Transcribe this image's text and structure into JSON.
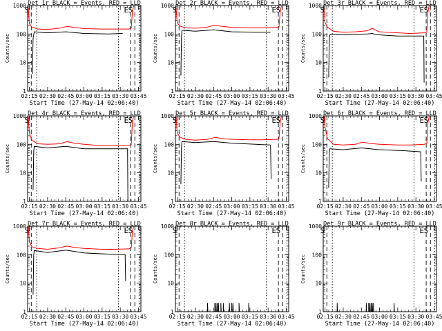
{
  "chart_data": {
    "type": "line",
    "yscale": "log",
    "ylim": [
      1,
      1000
    ],
    "yticks": [
      1,
      10,
      100,
      1000
    ],
    "ytick_labels": [
      "1",
      "10",
      "100",
      "1000"
    ],
    "ylabel": "Counts/sec",
    "xlim_min": [
      133.5,
      227
    ],
    "xticks_min": [
      135,
      150,
      165,
      180,
      195,
      210,
      225
    ],
    "xtick_labels": [
      "02:15",
      "02:30",
      "02:45",
      "03:00",
      "03:15",
      "03:30",
      "03:45"
    ],
    "xlabel": "Start Time (27-May-14 02:06:40)",
    "markers": {
      "S": {
        "label": "S",
        "style": "dashed",
        "min": 136.5
      },
      "S_dot": {
        "style": "dotted",
        "min": 141
      },
      "E_dot": {
        "style": "dotted",
        "min": 208.5
      },
      "E": {
        "label": "E",
        "style": "dashed",
        "min": 218.5
      },
      "S2": {
        "label": "S",
        "style": "dashed",
        "min": 222
      },
      "S2_dot": {
        "style": "dotted",
        "min": 225.5
      }
    },
    "series_names": [
      "Events (black)",
      "LLD (red)"
    ],
    "colors": {
      "events": "#000000",
      "lld": "#ff0000"
    },
    "panels": [
      {
        "title": "Det 1r BLACK = Events, RED = LLD",
        "lld": [
          [
            134,
            800
          ],
          [
            135,
            230
          ],
          [
            137,
            175
          ],
          [
            142,
            150
          ],
          [
            150,
            145
          ],
          [
            160,
            160
          ],
          [
            166,
            185
          ],
          [
            170,
            175
          ],
          [
            180,
            155
          ],
          [
            195,
            150
          ],
          [
            205,
            150
          ],
          [
            217,
            150
          ],
          [
            219,
            160
          ],
          [
            220,
            600
          ],
          [
            221,
            1000
          ]
        ],
        "events": [
          [
            137.5,
            4
          ],
          [
            138,
            70
          ],
          [
            139,
            120
          ],
          [
            150,
            110
          ],
          [
            165,
            120
          ],
          [
            180,
            105
          ],
          [
            200,
            100
          ],
          [
            212,
            105
          ]
        ]
      },
      {
        "title": "Det 2r BLACK = Events, RED = LLD",
        "lld": [
          [
            134,
            800
          ],
          [
            135,
            250
          ],
          [
            137,
            190
          ],
          [
            142,
            165
          ],
          [
            150,
            160
          ],
          [
            160,
            175
          ],
          [
            166,
            205
          ],
          [
            170,
            190
          ],
          [
            180,
            170
          ],
          [
            195,
            165
          ],
          [
            205,
            165
          ],
          [
            217,
            170
          ],
          [
            219,
            180
          ],
          [
            220,
            600
          ],
          [
            221,
            1000
          ]
        ],
        "events": [
          [
            138,
            3.5
          ],
          [
            138.5,
            85
          ],
          [
            139,
            135
          ],
          [
            150,
            125
          ],
          [
            165,
            140
          ],
          [
            180,
            120
          ],
          [
            200,
            115
          ],
          [
            212,
            115
          ]
        ]
      },
      {
        "title": "Det 3r BLACK = Events, RED = LLD",
        "lld": [
          [
            134,
            800
          ],
          [
            135,
            250
          ],
          [
            137,
            175
          ],
          [
            142,
            125
          ],
          [
            150,
            115
          ],
          [
            160,
            120
          ],
          [
            170,
            130
          ],
          [
            174,
            160
          ],
          [
            177,
            135
          ],
          [
            180,
            120
          ],
          [
            195,
            110
          ],
          [
            205,
            105
          ],
          [
            217,
            110
          ],
          [
            219,
            115
          ],
          [
            220,
            600
          ],
          [
            221,
            1000
          ]
        ],
        "events": [
          [
            138,
            3
          ],
          [
            138.5,
            65
          ],
          [
            139,
            95
          ],
          [
            150,
            95
          ],
          [
            170,
            100
          ],
          [
            174,
            105
          ],
          [
            177,
            95
          ],
          [
            195,
            85
          ],
          [
            215,
            85
          ],
          [
            216.5,
            85
          ],
          [
            216.8,
            2
          ]
        ]
      },
      {
        "title": "Det 4r BLACK = Events, RED = LLD",
        "lld": [
          [
            134,
            900
          ],
          [
            135,
            250
          ],
          [
            137,
            140
          ],
          [
            142,
            105
          ],
          [
            150,
            100
          ],
          [
            160,
            105
          ],
          [
            166,
            125
          ],
          [
            172,
            110
          ],
          [
            180,
            100
          ],
          [
            195,
            90
          ],
          [
            205,
            90
          ],
          [
            217,
            90
          ],
          [
            219,
            95
          ],
          [
            220,
            600
          ],
          [
            221,
            1000
          ]
        ],
        "events": [
          [
            138,
            2.5
          ],
          [
            138.5,
            55
          ],
          [
            139,
            85
          ],
          [
            150,
            75
          ],
          [
            165,
            85
          ],
          [
            180,
            70
          ],
          [
            200,
            70
          ],
          [
            215,
            70
          ],
          [
            216,
            70
          ],
          [
            216.3,
            1
          ]
        ]
      },
      {
        "title": "Det 5r BLACK = Events, RED = LLD",
        "lld": [
          [
            134,
            900
          ],
          [
            135,
            260
          ],
          [
            137,
            180
          ],
          [
            142,
            150
          ],
          [
            150,
            140
          ],
          [
            160,
            150
          ],
          [
            166,
            175
          ],
          [
            172,
            160
          ],
          [
            180,
            150
          ],
          [
            195,
            145
          ],
          [
            205,
            145
          ],
          [
            217,
            150
          ],
          [
            219,
            160
          ],
          [
            220,
            600
          ],
          [
            221,
            1000
          ]
        ],
        "events": [
          [
            138,
            4
          ],
          [
            138.5,
            80
          ],
          [
            139,
            125
          ],
          [
            150,
            115
          ],
          [
            165,
            125
          ],
          [
            180,
            110
          ],
          [
            200,
            100
          ],
          [
            212,
            95
          ],
          [
            212.5,
            6
          ]
        ]
      },
      {
        "title": "Det 6r BLACK = Events, RED = LLD",
        "lld": [
          [
            134,
            1000
          ],
          [
            135,
            400
          ],
          [
            137,
            160
          ],
          [
            142,
            100
          ],
          [
            150,
            95
          ],
          [
            160,
            100
          ],
          [
            166,
            120
          ],
          [
            172,
            108
          ],
          [
            180,
            100
          ],
          [
            195,
            95
          ],
          [
            205,
            95
          ],
          [
            217,
            100
          ],
          [
            219,
            110
          ],
          [
            220,
            600
          ],
          [
            221,
            1000
          ]
        ],
        "events": [
          [
            138,
            3
          ],
          [
            138.5,
            55
          ],
          [
            139,
            70
          ],
          [
            150,
            65
          ],
          [
            165,
            75
          ],
          [
            180,
            65
          ],
          [
            200,
            60
          ],
          [
            214,
            55
          ],
          [
            214.4,
            5
          ]
        ]
      },
      {
        "title": "Det 7r BLACK = Events, RED = LLD",
        "lld": [
          [
            134,
            1000
          ],
          [
            135,
            280
          ],
          [
            137,
            190
          ],
          [
            142,
            165
          ],
          [
            150,
            155
          ],
          [
            160,
            175
          ],
          [
            166,
            200
          ],
          [
            172,
            180
          ],
          [
            180,
            165
          ],
          [
            195,
            155
          ],
          [
            205,
            155
          ],
          [
            217,
            160
          ],
          [
            219,
            175
          ],
          [
            220,
            600
          ],
          [
            221,
            1000
          ]
        ],
        "events": [
          [
            138,
            4
          ],
          [
            138.5,
            95
          ],
          [
            139,
            140
          ],
          [
            150,
            120
          ],
          [
            165,
            145
          ],
          [
            180,
            115
          ],
          [
            200,
            105
          ],
          [
            214,
            100
          ],
          [
            214.4,
            12
          ]
        ]
      },
      {
        "title": "Det 8r BLACK = Events, RED = LLD",
        "lld": [],
        "events": [
          [
            134,
            1
          ],
          [
            160,
            1
          ],
          [
            160,
            2
          ],
          [
            160.3,
            1
          ],
          [
            166,
            1
          ],
          [
            166,
            2
          ],
          [
            166.3,
            1
          ],
          [
            167,
            1
          ],
          [
            167,
            2
          ],
          [
            167.3,
            1
          ],
          [
            168,
            1
          ],
          [
            168,
            2
          ],
          [
            168.3,
            1
          ],
          [
            169,
            1
          ],
          [
            169,
            2
          ],
          [
            169.3,
            1
          ],
          [
            171,
            1
          ],
          [
            171,
            2
          ],
          [
            171.3,
            1
          ],
          [
            173,
            1
          ],
          [
            173,
            2
          ],
          [
            173.3,
            1
          ],
          [
            178,
            1
          ],
          [
            178,
            2
          ],
          [
            178.3,
            1
          ],
          [
            180,
            1
          ],
          [
            180,
            2
          ],
          [
            180.3,
            1
          ],
          [
            181,
            1
          ],
          [
            181,
            2
          ],
          [
            181.3,
            1
          ],
          [
            186,
            1
          ],
          [
            186,
            2
          ],
          [
            186.3,
            1
          ],
          [
            194,
            1
          ],
          [
            194,
            2
          ],
          [
            194.3,
            1
          ],
          [
            227,
            1
          ]
        ]
      },
      {
        "title": "Det 9r BLACK = Events, RED = LLD",
        "lld": [],
        "events": [
          [
            134,
            1
          ],
          [
            145,
            1
          ],
          [
            145,
            2
          ],
          [
            145.3,
            1
          ],
          [
            169,
            1
          ],
          [
            169,
            2
          ],
          [
            169.3,
            1
          ],
          [
            171,
            1
          ],
          [
            171,
            2
          ],
          [
            171.3,
            1
          ],
          [
            172,
            1
          ],
          [
            172,
            2
          ],
          [
            172.3,
            1
          ],
          [
            173,
            1
          ],
          [
            173,
            2
          ],
          [
            173.3,
            1
          ],
          [
            174,
            1
          ],
          [
            174,
            2
          ],
          [
            174.3,
            1
          ],
          [
            175,
            1
          ],
          [
            175,
            2
          ],
          [
            175.3,
            1
          ],
          [
            192,
            1
          ],
          [
            192,
            2
          ],
          [
            192.3,
            1
          ],
          [
            227,
            1
          ]
        ]
      }
    ]
  }
}
